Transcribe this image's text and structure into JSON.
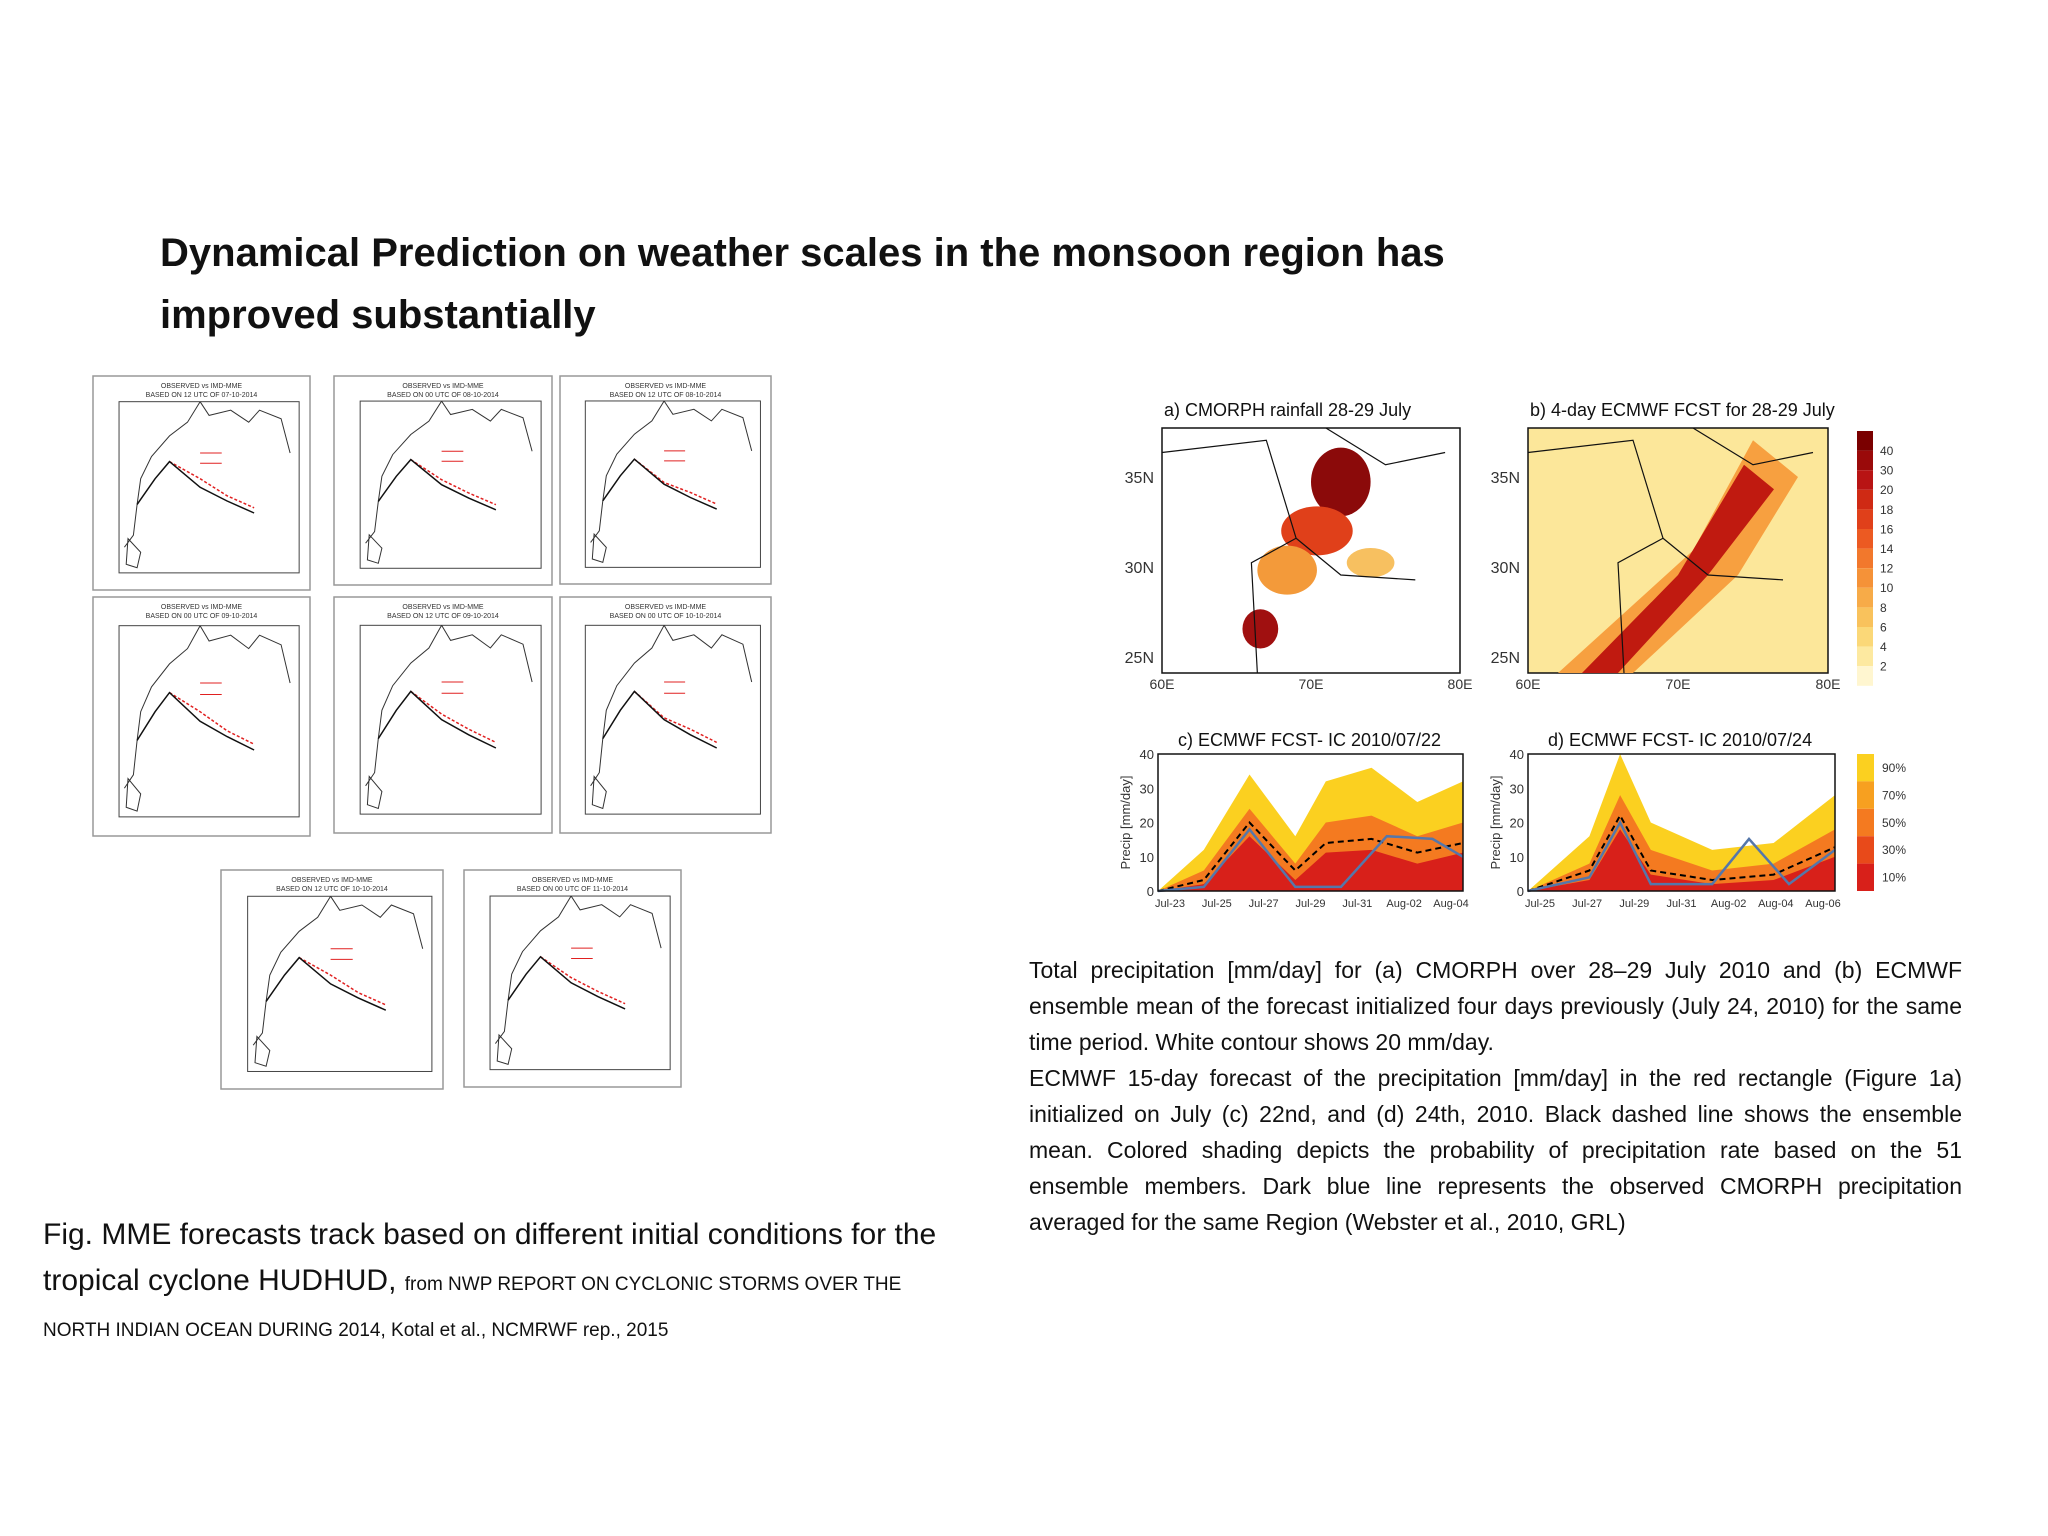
{
  "title": "Dynamical Prediction on weather scales in the monsoon region has improved substantially",
  "track_panels": [
    {
      "header": "OBSERVED vs IMD-MME",
      "subheader": "BASED ON 12 UTC OF 07-10-2014"
    },
    {
      "header": "OBSERVED vs IMD-MME",
      "subheader": "BASED ON 00 UTC OF 08-10-2014"
    },
    {
      "header": "OBSERVED vs IMD-MME",
      "subheader": "BASED ON 12 UTC OF 08-10-2014"
    },
    {
      "header": "OBSERVED vs IMD-MME",
      "subheader": "BASED ON 00 UTC OF 09-10-2014"
    },
    {
      "header": "OBSERVED vs IMD-MME",
      "subheader": "BASED ON 12 UTC OF 09-10-2014"
    },
    {
      "header": "OBSERVED vs IMD-MME",
      "subheader": "BASED ON 00 UTC OF 10-10-2014"
    },
    {
      "header": "OBSERVED vs IMD-MME",
      "subheader": "BASED ON 12 UTC OF 10-10-2014"
    },
    {
      "header": "OBSERVED vs IMD-MME",
      "subheader": "BASED ON 00 UTC OF 11-10-2014"
    }
  ],
  "track_caption": {
    "main": "Fig. MME forecasts track based on different initial conditions for the tropical cyclone HUDHUD,",
    "source": "from NWP REPORT ON CYCLONIC STORMS OVER THE NORTH INDIAN OCEAN DURING 2014, Kotal et al., NCMRWF rep., 2015"
  },
  "precip_figure": {
    "maps": [
      {
        "title": "a) CMORPH rainfall 28-29 July"
      },
      {
        "title": "b) 4-day ECMWF FCST for 28-29 July"
      }
    ],
    "map_lat_labels": [
      "35N",
      "30N",
      "25N"
    ],
    "map_lon_labels": [
      "60E",
      "70E",
      "80E"
    ],
    "colorbar_labels": [
      40,
      30,
      20,
      18,
      16,
      14,
      12,
      10,
      8,
      6,
      4,
      2
    ],
    "series_plots": [
      {
        "title": "c) ECMWF FCST- IC 2010/07/22",
        "x_labels": [
          "Jul-23",
          "Jul-25",
          "Jul-27",
          "Jul-29",
          "Jul-31",
          "Aug-02",
          "Aug-04"
        ]
      },
      {
        "title": "d) ECMWF FCST- IC 2010/07/24",
        "x_labels": [
          "Jul-25",
          "Jul-27",
          "Jul-29",
          "Jul-31",
          "Aug-02",
          "Aug-04",
          "Aug-06"
        ]
      }
    ],
    "series_y_label": "Precip [mm/day]",
    "series_y_ticks": [
      0,
      10,
      20,
      30,
      40
    ],
    "probability_legend": [
      "90%",
      "70%",
      "50%",
      "30%",
      "10%"
    ]
  },
  "precip_caption": [
    "Total precipitation [mm/day] for (a) CMORPH over 28–29 July 2010 and (b) ECMWF ensemble mean of the forecast initialized four days previously (July 24, 2010) for the same time period. White contour shows 20 mm/day.",
    "ECMWF 15-day forecast of the precipitation [mm/day] in the red rectangle (Figure 1a) initialized on July (c) 22nd, and (d) 24th, 2010. Black dashed line shows the ensemble mean. Colored shading depicts the probability of precipitation rate based on the 51 ensemble members. Dark blue line represents the observed CMORPH precipitation averaged for the same Region (Webster et al., 2010, GRL)"
  ]
}
